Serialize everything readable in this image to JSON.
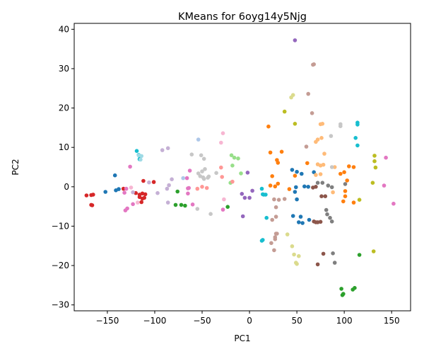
{
  "chart_data": {
    "type": "scatter",
    "title": "KMeans for 6oyg14y5Njg",
    "xlabel": "PC1",
    "ylabel": "PC2",
    "xlim": [
      -185,
      170
    ],
    "ylim": [
      -31.5,
      41.5
    ],
    "xticks": [
      -150,
      -100,
      -50,
      0,
      50,
      100,
      150
    ],
    "yticks": [
      -30,
      -20,
      -10,
      0,
      10,
      20,
      30,
      40
    ],
    "grid": false,
    "legend": "none",
    "series": [
      {
        "color": "#1f77b4",
        "points": [
          [
            -152,
            -1.3
          ],
          [
            -141,
            -0.9
          ],
          [
            -138,
            -0.6
          ],
          [
            -142,
            2.9
          ],
          [
            45,
            4.3
          ],
          [
            50,
            3.8
          ],
          [
            55,
            3.3
          ],
          [
            48,
            -1.3
          ],
          [
            50,
            -3.2
          ],
          [
            58,
            0.1
          ],
          [
            62,
            0
          ],
          [
            46,
            -7.4
          ],
          [
            54,
            -7.6
          ],
          [
            56,
            -9.2
          ],
          [
            52,
            -9.0
          ],
          [
            63,
            -8.4
          ],
          [
            68,
            3.7
          ],
          [
            49,
            -0.1
          ]
        ]
      },
      {
        "color": "#ff7f0e",
        "points": [
          [
            20,
            15.3
          ],
          [
            22,
            8.7
          ],
          [
            29,
            6.8
          ],
          [
            30,
            6.1
          ],
          [
            34,
            8.9
          ],
          [
            24,
            2.7
          ],
          [
            30,
            0.8
          ],
          [
            22,
            0.3
          ],
          [
            42,
            -0.6
          ],
          [
            48,
            2.8
          ],
          [
            61,
            6.0
          ],
          [
            96,
            3.3
          ],
          [
            100,
            3.7
          ],
          [
            103,
            1.6
          ],
          [
            101,
            -1.1
          ],
          [
            105,
            5.2
          ],
          [
            110,
            5.0
          ],
          [
            110,
            -4.0
          ],
          [
            99,
            -3.7
          ],
          [
            101,
            -2.4
          ],
          [
            27,
            0.1
          ]
        ]
      },
      {
        "color": "#2ca02c",
        "points": [
          [
            -76,
            -1.2
          ],
          [
            -78,
            -4.6
          ],
          [
            -68,
            -4.8
          ],
          [
            -72,
            -4.6
          ],
          [
            -23,
            -5.1
          ],
          [
            97,
            -25.9
          ],
          [
            99,
            -27.2
          ],
          [
            98,
            -27.5
          ],
          [
            109,
            -26.1
          ],
          [
            111,
            -25.7
          ],
          [
            116,
            -17.3
          ]
        ]
      },
      {
        "color": "#d62728",
        "points": [
          [
            -172,
            -2.2
          ],
          [
            -167,
            -2.1
          ],
          [
            -165,
            -2.0
          ],
          [
            -167,
            -4.6
          ],
          [
            -166,
            -4.7
          ],
          [
            -120,
            -1.6
          ],
          [
            -116,
            -2.0
          ],
          [
            -113,
            -1.7
          ],
          [
            -110,
            -1.9
          ],
          [
            -116,
            -2.6
          ],
          [
            -113,
            -3.0
          ],
          [
            -111,
            -2.8
          ],
          [
            -114,
            -3.9
          ],
          [
            -112,
            1.5
          ],
          [
            -101,
            1.2
          ],
          [
            -133,
            -0.5
          ]
        ]
      },
      {
        "color": "#9467bd",
        "points": [
          [
            48,
            37.2
          ],
          [
            -8,
            -1.8
          ],
          [
            -5,
            -2.8
          ],
          [
            0,
            -2.8
          ],
          [
            -2,
            3.6
          ],
          [
            3,
            -1.0
          ],
          [
            -7,
            -7.5
          ]
        ]
      },
      {
        "color": "#8c564b",
        "points": [
          [
            67,
            -0.2
          ],
          [
            70,
            0.0
          ],
          [
            68,
            -8.8
          ],
          [
            70,
            -9.0
          ],
          [
            72,
            -9.0
          ],
          [
            75,
            -8.9
          ],
          [
            76,
            -2.4
          ],
          [
            72,
            -19.7
          ],
          [
            78,
            -17.0
          ],
          [
            80,
            -2.4
          ]
        ]
      },
      {
        "color": "#e377c2",
        "points": [
          [
            -131,
            -6.0
          ],
          [
            -129,
            -5.5
          ],
          [
            -123,
            -4.4
          ],
          [
            -132,
            -1.5
          ],
          [
            -130,
            -0.5
          ],
          [
            -126,
            5.1
          ],
          [
            -65,
            -0.4
          ],
          [
            -64,
            -0.3
          ],
          [
            -65,
            -1.7
          ],
          [
            -66,
            2.2
          ],
          [
            -63,
            4.1
          ],
          [
            -60,
            -4.5
          ],
          [
            -28,
            -5.8
          ],
          [
            142,
            0.3
          ],
          [
            152,
            -4.3
          ],
          [
            144,
            7.4
          ]
        ]
      },
      {
        "color": "#7f7f7f",
        "points": [
          [
            72,
            1.0
          ],
          [
            77,
            1.0
          ],
          [
            83,
            0.3
          ],
          [
            87,
            -0.1
          ],
          [
            81,
            -5.9
          ],
          [
            82,
            -7.0
          ],
          [
            85,
            -7.9
          ],
          [
            87,
            -8.8
          ],
          [
            88,
            -16.9
          ],
          [
            90,
            -19.3
          ],
          [
            101,
            0.7
          ]
        ]
      },
      {
        "color": "#bcbd22",
        "points": [
          [
            37,
            19.1
          ],
          [
            48,
            16.0
          ],
          [
            130,
            1.0
          ],
          [
            132,
            7.9
          ],
          [
            132,
            6.5
          ],
          [
            133,
            4.9
          ],
          [
            116,
            -3.3
          ],
          [
            131,
            -16.4
          ]
        ]
      },
      {
        "color": "#17becf",
        "points": [
          [
            -119,
            9.1
          ],
          [
            -117,
            8.1
          ],
          [
            -116,
            7.8
          ],
          [
            -116,
            7.0
          ],
          [
            13,
            -0.5
          ],
          [
            14,
            -1.9
          ],
          [
            15,
            -2.0
          ],
          [
            17,
            -2.0
          ],
          [
            18,
            -7.9
          ],
          [
            14,
            -13.5
          ],
          [
            13,
            -13.7
          ],
          [
            114,
            16.3
          ],
          [
            114,
            15.8
          ],
          [
            114,
            10.5
          ],
          [
            112,
            12.4
          ]
        ]
      },
      {
        "color": "#aec7e8",
        "points": [
          [
            -54,
            12.0
          ],
          [
            -70,
            2.2
          ]
        ]
      },
      {
        "color": "#ffbb78",
        "points": [
          [
            70,
            11.4
          ],
          [
            72,
            12.0
          ],
          [
            75,
            15.9
          ],
          [
            77,
            16.0
          ],
          [
            76,
            12.4
          ],
          [
            78,
            5.6
          ],
          [
            72,
            5.7
          ],
          [
            70,
            3.0
          ],
          [
            75,
            5.4
          ],
          [
            79,
            8.4
          ],
          [
            90,
            5.0
          ],
          [
            75,
            3.2
          ],
          [
            88,
            -1.4
          ]
        ]
      },
      {
        "color": "#98df8a",
        "points": [
          [
            -19,
            8.0
          ],
          [
            -12,
            7.2
          ],
          [
            -16,
            7.4
          ],
          [
            -18,
            5.4
          ],
          [
            -20,
            1.0
          ],
          [
            -9,
            3.4
          ]
        ]
      },
      {
        "color": "#ff9896",
        "points": [
          [
            -18,
            1.3
          ],
          [
            -30,
            4.9
          ],
          [
            -29,
            2.5
          ],
          [
            -45,
            -0.3
          ],
          [
            -50,
            0.0
          ],
          [
            -55,
            -0.5
          ]
        ]
      },
      {
        "color": "#c5b0d5",
        "points": [
          [
            -92,
            9.3
          ],
          [
            -86,
            9.8
          ],
          [
            -106,
            1.1
          ],
          [
            -97,
            -1.6
          ],
          [
            -87,
            -0.5
          ],
          [
            -86,
            -4.0
          ],
          [
            -85,
            0.4
          ],
          [
            -82,
            1.9
          ],
          [
            -123,
            -1.4
          ]
        ]
      },
      {
        "color": "#c49c94",
        "points": [
          [
            26,
            -3.2
          ],
          [
            28,
            -5.2
          ],
          [
            31,
            -3.3
          ],
          [
            37,
            -3.1
          ],
          [
            24,
            -8.4
          ],
          [
            28,
            -7.6
          ],
          [
            28,
            -11.9
          ],
          [
            29,
            -11.9
          ],
          [
            27,
            -12.8
          ],
          [
            27,
            -13.3
          ],
          [
            23,
            -14.3
          ],
          [
            26,
            -16.1
          ],
          [
            60,
            10.2
          ],
          [
            62,
            23.6
          ],
          [
            66,
            18.7
          ],
          [
            67,
            31.0
          ],
          [
            68,
            31.1
          ]
        ]
      },
      {
        "color": "#f7b6d2",
        "points": [
          [
            -28,
            13.6
          ],
          [
            -30,
            11.2
          ],
          [
            -27,
            -3.2
          ],
          [
            -118,
            -4.0
          ],
          [
            -125,
            -0.2
          ]
        ]
      },
      {
        "color": "#c7c7c7",
        "points": [
          [
            -61,
            8.2
          ],
          [
            -51,
            8.0
          ],
          [
            -48,
            7.1
          ],
          [
            -47,
            4.5
          ],
          [
            -50,
            3.9
          ],
          [
            -54,
            3.4
          ],
          [
            -52,
            2.7
          ],
          [
            -49,
            2.4
          ],
          [
            -48,
            2.0
          ],
          [
            -55,
            -5.6
          ],
          [
            -41,
            -6.9
          ],
          [
            -35,
            3.5
          ],
          [
            -43,
            2.6
          ],
          [
            -44,
            2.3
          ],
          [
            87,
            5.0
          ],
          [
            86,
            12.9
          ],
          [
            96,
            15.9
          ],
          [
            96,
            15.4
          ]
        ]
      },
      {
        "color": "#dbdb8d",
        "points": [
          [
            46,
            23.3
          ],
          [
            44,
            22.7
          ],
          [
            40,
            -12.1
          ],
          [
            45,
            -15.1
          ],
          [
            47,
            -17.2
          ],
          [
            49,
            -19.3
          ],
          [
            50,
            -19.6
          ],
          [
            52,
            -17.6
          ]
        ]
      },
      {
        "color": "#9edae5",
        "points": [
          [
            -114,
            7.8
          ],
          [
            -115,
            6.9
          ],
          [
            -117,
            8.0
          ]
        ]
      }
    ]
  }
}
